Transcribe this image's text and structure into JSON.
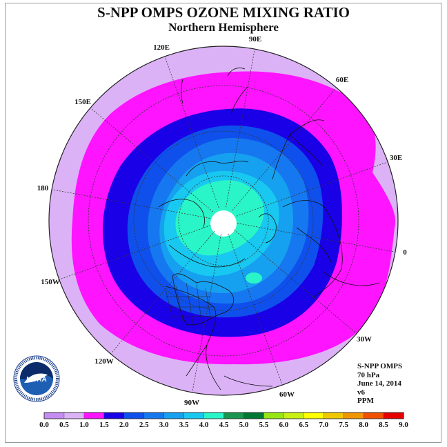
{
  "title": "S-NPP OMPS OZONE MIXING RATIO",
  "subtitle": "Northern Hemisphere",
  "longitude_labels": [
    "90E",
    "60E",
    "30E",
    "0",
    "30W",
    "60W",
    "90W",
    "120W",
    "150W",
    "180",
    "150E",
    "120E"
  ],
  "info": {
    "instrument": "S-NPP OMPS",
    "level": "70 hPa",
    "date": "June 14, 2014",
    "version": "v6",
    "units": "PPM"
  },
  "logo": {
    "text": "NOAA"
  },
  "colorbar": {
    "labels": [
      "0.0",
      "0.5",
      "1.0",
      "1.5",
      "2.0",
      "2.5",
      "3.0",
      "3.5",
      "4.0",
      "4.5",
      "5.0",
      "5.5",
      "6.0",
      "6.5",
      "7.0",
      "7.5",
      "8.0",
      "8.5",
      "9.0"
    ],
    "colors": [
      "#c58cf2",
      "#dcb2f7",
      "#ff14ff",
      "#1a00e6",
      "#0f50ec",
      "#1678f0",
      "#16a0f0",
      "#18c8f0",
      "#2af5c8",
      "#189650",
      "#007832",
      "#96e614",
      "#c8f014",
      "#ffff00",
      "#f0c800",
      "#f09600",
      "#f05000",
      "#e60000",
      "#965a46"
    ]
  },
  "map_data": {
    "projection": "north polar stereographic",
    "pressure_level": "70 hPa",
    "units": "PPM",
    "band_colors": {
      "0.5-1.0": "#dcb2f7",
      "1.0-1.5": "#ff14ff",
      "1.5-2.0": "#1a00e6",
      "2.0-2.5": "#0f50ec",
      "2.5-3.0": "#1678f0",
      "3.0-3.5": "#16a0f0",
      "3.5-4.0": "#18c8f0",
      "4.0-4.5": "#2af5c8"
    },
    "no_data_region": "north pole",
    "no_data_color": "#ffffff"
  }
}
